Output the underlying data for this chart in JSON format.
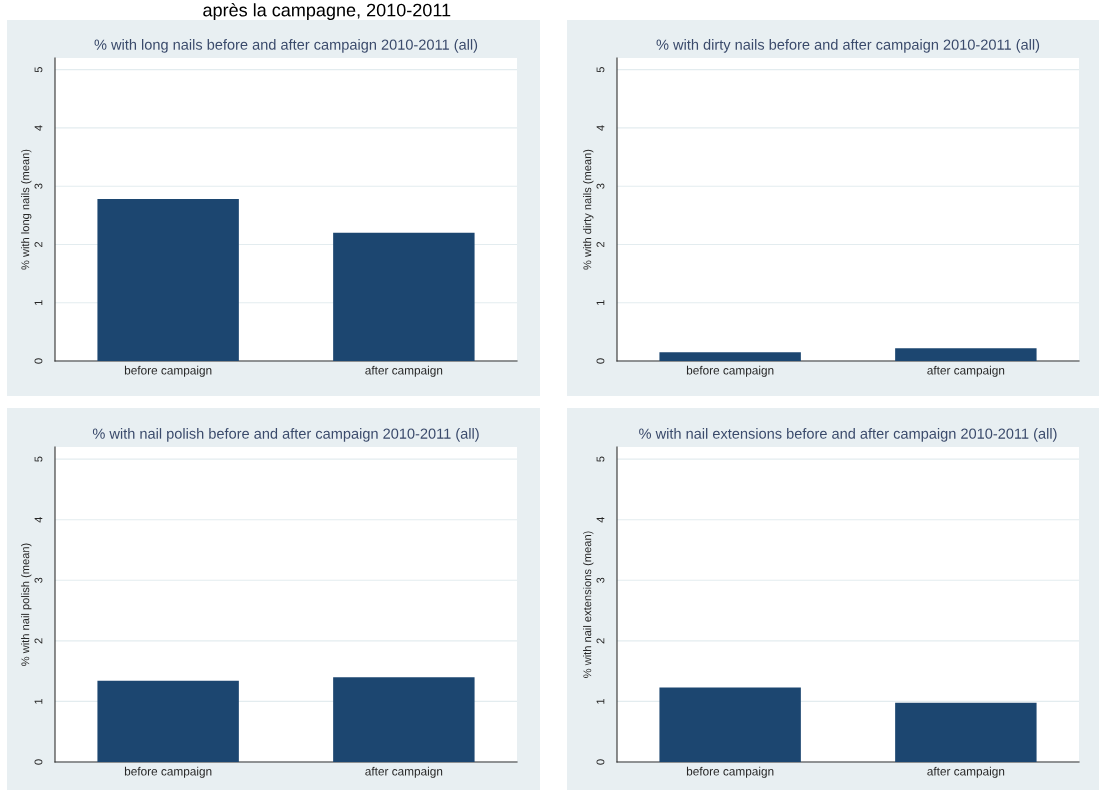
{
  "chart_data": [
    {
      "type": "bar",
      "title": "% with long nails before and after campaign 2010-2011 (all)",
      "ylabel": "% with long nails (mean)",
      "categories": [
        "before campaign",
        "after campaign"
      ],
      "values": [
        2.78,
        2.2
      ],
      "color": "#1c4670",
      "ylim": [
        0,
        5.2
      ],
      "yticks": [
        0,
        1,
        2,
        3,
        4,
        5
      ],
      "grid": "y",
      "annotations": [
        "après la campagne, 2010-2011"
      ]
    },
    {
      "type": "bar",
      "title": "% with dirty nails before and after campaign 2010-2011 (all)",
      "ylabel": "% with dirty nails (mean)",
      "categories": [
        "before campaign",
        "after campaign"
      ],
      "values": [
        0.15,
        0.22
      ],
      "color": "#1c4670",
      "ylim": [
        0,
        5.2
      ],
      "yticks": [
        0,
        1,
        2,
        3,
        4,
        5
      ],
      "grid": "y"
    },
    {
      "type": "bar",
      "title": "% with nail polish before and after campaign 2010-2011 (all)",
      "ylabel": "% with nail polish (mean)",
      "categories": [
        "before campaign",
        "after campaign"
      ],
      "values": [
        1.34,
        1.4
      ],
      "color": "#1c4670",
      "ylim": [
        0,
        5.2
      ],
      "yticks": [
        0,
        1,
        2,
        3,
        4,
        5
      ],
      "grid": "y"
    },
    {
      "type": "bar",
      "title": "% with nail extensions before and after campaign 2010-2011 (all)",
      "ylabel": "% with nail extensions (mean)",
      "categories": [
        "before campaign",
        "after campaign"
      ],
      "values": [
        1.23,
        0.98
      ],
      "color": "#1c4670",
      "ylim": [
        0,
        5.2
      ],
      "yticks": [
        0,
        1,
        2,
        3,
        4,
        5
      ],
      "grid": "y"
    }
  ]
}
